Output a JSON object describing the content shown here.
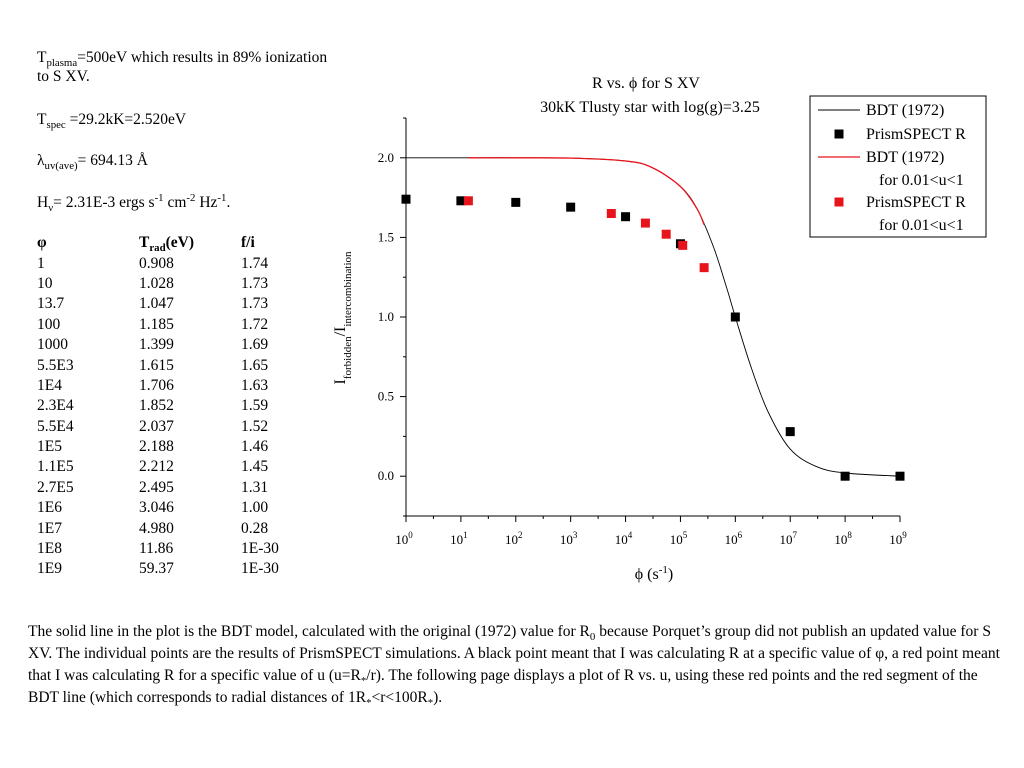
{
  "notes": {
    "plasma_main": "T",
    "plasma_sub": "plasma",
    "plasma_rest": "=500eV which results in 89% ionization to S XV.",
    "spec_main": "T",
    "spec_sub": "spec",
    "spec_rest": " =29.2kK=2.520eV",
    "lambda_main": "λ",
    "lambda_sub": "uv(ave)",
    "lambda_rest": "= 694.13 Å",
    "h_main": "H",
    "h_sub": "ν",
    "h_val": "= 2.31E-3 ergs s",
    "h_sup1": "-1",
    "h_cm": " cm",
    "h_sup2": "-2",
    "h_hz": " Hz",
    "h_sup3": "-1",
    "h_end": "."
  },
  "table": {
    "headers": {
      "phi": "φ",
      "trad_main": "T",
      "trad_sub": "rad",
      "trad_unit": "(eV)",
      "fi": "f/i"
    },
    "rows": [
      [
        "1",
        "0.908",
        "1.74"
      ],
      [
        "10",
        "1.028",
        "1.73"
      ],
      [
        "13.7",
        "1.047",
        "1.73"
      ],
      [
        "100",
        "1.185",
        "1.72"
      ],
      [
        "1000",
        "1.399",
        "1.69"
      ],
      [
        "5.5E3",
        "1.615",
        "1.65"
      ],
      [
        "1E4",
        "1.706",
        "1.63"
      ],
      [
        "2.3E4",
        "1.852",
        "1.59"
      ],
      [
        "5.5E4",
        "2.037",
        "1.52"
      ],
      [
        "1E5",
        "2.188",
        "1.46"
      ],
      [
        "1.1E5",
        "2.212",
        "1.45"
      ],
      [
        "2.7E5",
        "2.495",
        "1.31"
      ],
      [
        "1E6",
        "3.046",
        "1.00"
      ],
      [
        "1E7",
        "4.980",
        "0.28"
      ],
      [
        "1E8",
        "11.86",
        "1E-30"
      ],
      [
        "1E9",
        "59.37",
        "1E-30"
      ]
    ]
  },
  "chart_data": {
    "type": "scatter",
    "title": "R vs. ϕ for S XV",
    "subtitle": "30kK Tlusty star with log(g)=3.25",
    "xlabel": "ϕ (s",
    "xlabel_sup": "-1",
    "xlabel_end": ")",
    "ylabel_main": "I",
    "ylabel_sub1": "forbidden",
    "ylabel_mid": "/I",
    "ylabel_sub2": "intercombination",
    "x_scale": "log",
    "xlim": [
      1,
      1000000000
    ],
    "ylim": [
      -0.25,
      2.25
    ],
    "x_tick_base": "10",
    "x_tick_exponents": [
      "0",
      "1",
      "2",
      "3",
      "4",
      "5",
      "6",
      "7",
      "8",
      "9"
    ],
    "y_ticks": [
      0.0,
      0.5,
      1.0,
      1.5,
      2.0
    ],
    "y_tick_labels": [
      "0.0",
      "0.5",
      "1.0",
      "1.5",
      "2.0"
    ],
    "grid": false,
    "legend_position": "top-right",
    "colors": {
      "black": "#000000",
      "red": "#e8141c"
    },
    "series": [
      {
        "name": "BDT (1972)",
        "kind": "line",
        "color": "#000000",
        "x": [
          1,
          10,
          100,
          1000,
          10000,
          30000,
          100000,
          200000,
          400000,
          700000,
          1000000,
          2000000,
          4000000,
          10000000,
          30000000,
          100000000,
          1000000000
        ],
        "y": [
          2.0,
          2.0,
          2.0,
          1.998,
          1.98,
          1.94,
          1.82,
          1.68,
          1.44,
          1.18,
          1.0,
          0.67,
          0.4,
          0.17,
          0.06,
          0.02,
          0.0
        ]
      },
      {
        "name": "PrismSPECT R",
        "kind": "scatter",
        "color": "#000000",
        "x": [
          1,
          10,
          100,
          1000,
          10000,
          100000,
          1000000,
          10000000,
          100000000,
          1000000000
        ],
        "y": [
          1.74,
          1.73,
          1.72,
          1.69,
          1.63,
          1.46,
          1.0,
          0.28,
          0.0,
          0.0
        ]
      },
      {
        "name": "BDT (1972)",
        "name_line2": "for 0.01<u<1",
        "kind": "line",
        "color": "#e8141c",
        "x": [
          13.7,
          100,
          1000,
          10000,
          30000,
          100000,
          200000,
          270000
        ],
        "y": [
          2.0,
          2.0,
          1.998,
          1.98,
          1.94,
          1.82,
          1.68,
          1.58
        ]
      },
      {
        "name": "PrismSPECT R",
        "name_line2": "for 0.01<u<1",
        "kind": "scatter",
        "color": "#e8141c",
        "x": [
          13.7,
          5500,
          23000,
          55000,
          110000,
          270000
        ],
        "y": [
          1.73,
          1.65,
          1.59,
          1.52,
          1.45,
          1.31
        ]
      }
    ]
  },
  "bottom": {
    "p1": "The solid line in the plot is the BDT model, calculated with the original (1972) value for R",
    "p1_sub": "0",
    "p2": " because Porquet’s group did not publish an updated value for S XV.  The individual points are the results of PrismSPECT simulations.  A black point meant that I was calculating R at a specific value of φ, a red point meant that I was calculating R for a specific value of u (u=R",
    "p2_sub": "*",
    "p3": "/r).  The following page displays a plot of R vs. u, using these red points and the red segment of the BDT line (which corresponds to radial distances of 1R",
    "p3_sub": "*",
    "p4": "<r<100R",
    "p4_sub": "*",
    "p5": ")."
  }
}
